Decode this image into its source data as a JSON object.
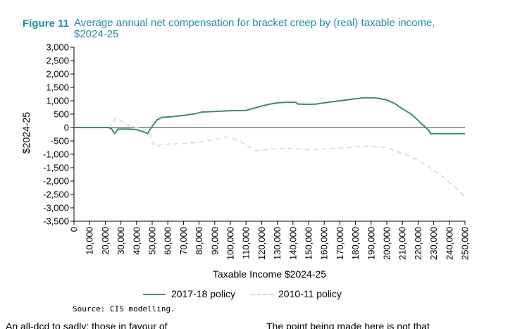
{
  "figure": {
    "number": "Figure 11",
    "title": "Average annual net compensation for bracket creep by (real) taxable income, $2024-25"
  },
  "source": "Source:   CIS modelling.",
  "body_text": {
    "left": "An all-dcd to sadly: those in favour of",
    "right": "The point being made here is not that"
  },
  "colors": {
    "series_2017": "#3f8a73",
    "series_2010": "#d9d9d9",
    "title": "#1f8fa6"
  },
  "chart_data": {
    "type": "line",
    "xlabel": "Taxable Income $2024-25",
    "ylabel": "$2024-25",
    "xlim": [
      0,
      250000
    ],
    "ylim": [
      -3500,
      3000
    ],
    "x_ticks": [
      "0",
      "10,000",
      "20,000",
      "30,000",
      "40,000",
      "50,000",
      "60,000",
      "70,000",
      "80,000",
      "90,000",
      "100,000",
      "110,000",
      "120,000",
      "130,000",
      "140,000",
      "150,000",
      "160,000",
      "170,000",
      "180,000",
      "190,000",
      "200,000",
      "210,000",
      "220,000",
      "230,000",
      "240,000",
      "250,000"
    ],
    "y_ticks": [
      "3,000",
      "2,500",
      "2,000",
      "1,500",
      "1,000",
      "500",
      "0",
      "-500",
      "-1,000",
      "-1,500",
      "-2,000",
      "-2,500",
      "-3,000",
      "-3,500"
    ],
    "y_tick_values": [
      3000,
      2500,
      2000,
      1500,
      1000,
      500,
      0,
      -500,
      -1000,
      -1500,
      -2000,
      -2500,
      -3000,
      -3500
    ],
    "series": [
      {
        "name": "2017-18 policy",
        "style": "solid",
        "points": [
          [
            0,
            0
          ],
          [
            22000,
            0
          ],
          [
            24000,
            -50
          ],
          [
            26000,
            -230
          ],
          [
            28000,
            -60
          ],
          [
            35000,
            -60
          ],
          [
            40000,
            -80
          ],
          [
            45000,
            -170
          ],
          [
            47000,
            -230
          ],
          [
            50000,
            50
          ],
          [
            53000,
            280
          ],
          [
            56000,
            380
          ],
          [
            62000,
            400
          ],
          [
            70000,
            450
          ],
          [
            78000,
            520
          ],
          [
            82000,
            580
          ],
          [
            90000,
            600
          ],
          [
            100000,
            630
          ],
          [
            110000,
            640
          ],
          [
            115000,
            720
          ],
          [
            120000,
            800
          ],
          [
            125000,
            870
          ],
          [
            130000,
            920
          ],
          [
            135000,
            940
          ],
          [
            142000,
            940
          ],
          [
            143000,
            880
          ],
          [
            150000,
            860
          ],
          [
            155000,
            880
          ],
          [
            160000,
            920
          ],
          [
            170000,
            1000
          ],
          [
            180000,
            1070
          ],
          [
            185000,
            1110
          ],
          [
            190000,
            1110
          ],
          [
            195000,
            1090
          ],
          [
            200000,
            1030
          ],
          [
            205000,
            900
          ],
          [
            210000,
            700
          ],
          [
            215000,
            520
          ],
          [
            218000,
            380
          ],
          [
            222000,
            150
          ],
          [
            225000,
            0
          ],
          [
            227000,
            -120
          ],
          [
            228000,
            -230
          ],
          [
            250000,
            -230
          ]
        ]
      },
      {
        "name": "2010-11 policy",
        "style": "dashed",
        "points": [
          [
            0,
            0
          ],
          [
            22000,
            0
          ],
          [
            25000,
            200
          ],
          [
            27000,
            380
          ],
          [
            30000,
            260
          ],
          [
            33000,
            110
          ],
          [
            40000,
            0
          ],
          [
            45000,
            -80
          ],
          [
            48000,
            -200
          ],
          [
            50000,
            -520
          ],
          [
            52000,
            -720
          ],
          [
            56000,
            -640
          ],
          [
            60000,
            -620
          ],
          [
            70000,
            -600
          ],
          [
            80000,
            -550
          ],
          [
            90000,
            -450
          ],
          [
            98000,
            -350
          ],
          [
            102000,
            -420
          ],
          [
            108000,
            -580
          ],
          [
            112000,
            -720
          ],
          [
            115000,
            -860
          ],
          [
            120000,
            -850
          ],
          [
            125000,
            -810
          ],
          [
            130000,
            -790
          ],
          [
            140000,
            -780
          ],
          [
            145000,
            -800
          ],
          [
            150000,
            -820
          ],
          [
            155000,
            -820
          ],
          [
            160000,
            -800
          ],
          [
            170000,
            -760
          ],
          [
            180000,
            -720
          ],
          [
            190000,
            -700
          ],
          [
            195000,
            -710
          ],
          [
            200000,
            -760
          ],
          [
            205000,
            -850
          ],
          [
            210000,
            -970
          ],
          [
            215000,
            -1080
          ],
          [
            220000,
            -1230
          ],
          [
            225000,
            -1400
          ],
          [
            230000,
            -1600
          ],
          [
            235000,
            -1800
          ],
          [
            240000,
            -2050
          ],
          [
            245000,
            -2300
          ],
          [
            250000,
            -2600
          ]
        ]
      }
    ],
    "legend_position": "bottom",
    "grid": false
  }
}
